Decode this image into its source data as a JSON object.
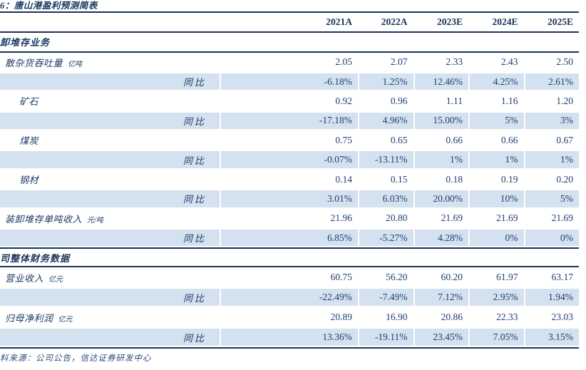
{
  "title": "6：唐山港盈利预测简表",
  "columns": [
    "2021A",
    "2022A",
    "2023E",
    "2024E",
    "2025E"
  ],
  "sections": [
    {
      "header": "卸堆存业务",
      "rows": [
        {
          "label": "散杂货吞吐量",
          "unit": "亿吨",
          "indent": 1,
          "values": [
            "2.05",
            "2.07",
            "2.33",
            "2.43",
            "2.50"
          ]
        },
        {
          "label": "同比",
          "yoy": true,
          "values": [
            "-6.18%",
            "1.25%",
            "12.46%",
            "4.25%",
            "2.61%"
          ]
        },
        {
          "label": "矿石",
          "indent": 2,
          "values": [
            "0.92",
            "0.96",
            "1.11",
            "1.16",
            "1.20"
          ]
        },
        {
          "label": "同比",
          "yoy": true,
          "values": [
            "-17.18%",
            "4.96%",
            "15.00%",
            "5%",
            "3%"
          ]
        },
        {
          "label": "煤炭",
          "indent": 2,
          "values": [
            "0.75",
            "0.65",
            "0.66",
            "0.66",
            "0.67"
          ]
        },
        {
          "label": "同比",
          "yoy": true,
          "values": [
            "-0.07%",
            "-13.11%",
            "1%",
            "1%",
            "1%"
          ]
        },
        {
          "label": "钢材",
          "indent": 2,
          "values": [
            "0.14",
            "0.15",
            "0.18",
            "0.19",
            "0.20"
          ]
        },
        {
          "label": "同比",
          "yoy": true,
          "values": [
            "3.01%",
            "6.03%",
            "20.00%",
            "10%",
            "5%"
          ]
        },
        {
          "label": "装卸堆存单吨收入",
          "unit": "元/吨",
          "indent": 1,
          "values": [
            "21.96",
            "20.80",
            "21.69",
            "21.69",
            "21.69"
          ]
        },
        {
          "label": "同比",
          "yoy": true,
          "values": [
            "6.85%",
            "-5.27%",
            "4.28%",
            "0%",
            "0%"
          ]
        }
      ]
    },
    {
      "header": "司整体财务数据",
      "rows": [
        {
          "label": "营业收入",
          "unit": "亿元",
          "indent": 1,
          "values": [
            "60.75",
            "56.20",
            "60.20",
            "61.97",
            "63.17"
          ]
        },
        {
          "label": "同比",
          "yoy": true,
          "values": [
            "-22.49%",
            "-7.49%",
            "7.12%",
            "2.95%",
            "1.94%"
          ]
        },
        {
          "label": "归母净利润",
          "unit": "亿元",
          "indent": 1,
          "values": [
            "20.89",
            "16.90",
            "20.86",
            "22.33",
            "23.03"
          ]
        },
        {
          "label": "同比",
          "yoy": true,
          "values": [
            "13.36%",
            "-19.11%",
            "23.45%",
            "7.05%",
            "3.15%"
          ]
        }
      ]
    }
  ],
  "source_note": "料来源：公司公告，信达证券研发中心",
  "colors": {
    "accent_navy": "#17365d",
    "rule_line": "#1b3259",
    "stripe_blue": "#d4e1ef",
    "value_text": "#1f3f70"
  }
}
